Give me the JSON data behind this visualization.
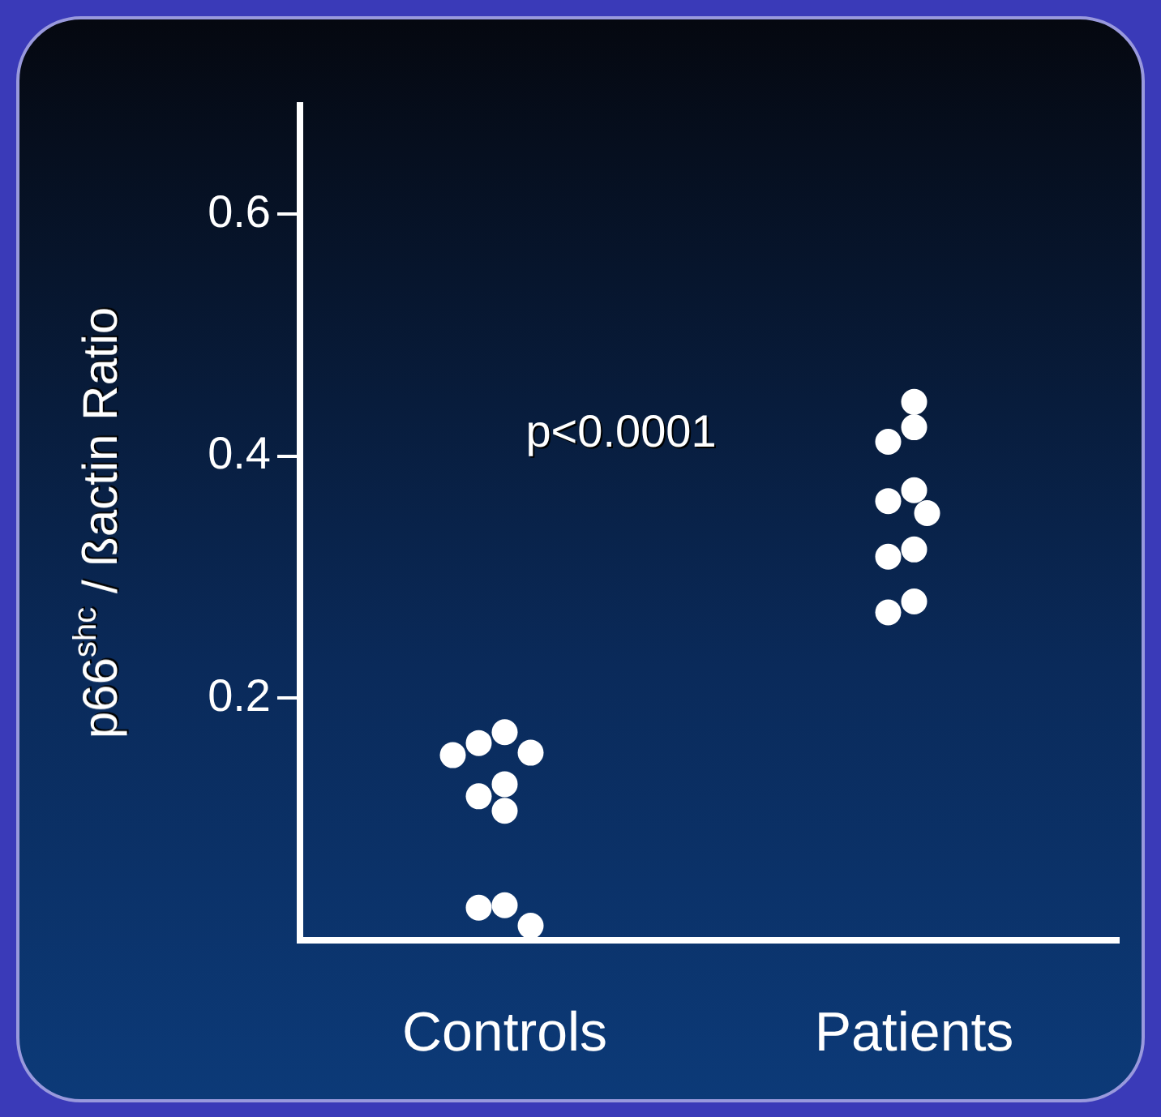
{
  "chart_data": {
    "type": "scatter",
    "categories": [
      "Controls",
      "Patients"
    ],
    "ylabel": "p66$^{shc}$ / ßactin Ratio",
    "ylim": [
      0,
      0.69
    ],
    "yticks": [
      0.2,
      0.4,
      0.6
    ],
    "grid": false,
    "legend": false,
    "marker": "circle",
    "annotations": [
      "p<0.0001"
    ],
    "series": [
      {
        "color": "#ffffff",
        "x": [
          "Controls",
          "Controls",
          "Controls",
          "Controls",
          "Controls",
          "Controls",
          "Controls",
          "Controls",
          "Controls",
          "Controls",
          "Patients",
          "Patients",
          "Patients",
          "Patients",
          "Patients",
          "Patients",
          "Patients",
          "Patients",
          "Patients",
          "Patients"
        ],
        "values": [
          0.172,
          0.163,
          0.155,
          0.153,
          0.129,
          0.119,
          0.107,
          0.029,
          0.027,
          0.012,
          0.445,
          0.424,
          0.412,
          0.372,
          0.363,
          0.353,
          0.323,
          0.317,
          0.28,
          0.271
        ]
      }
    ]
  }
}
